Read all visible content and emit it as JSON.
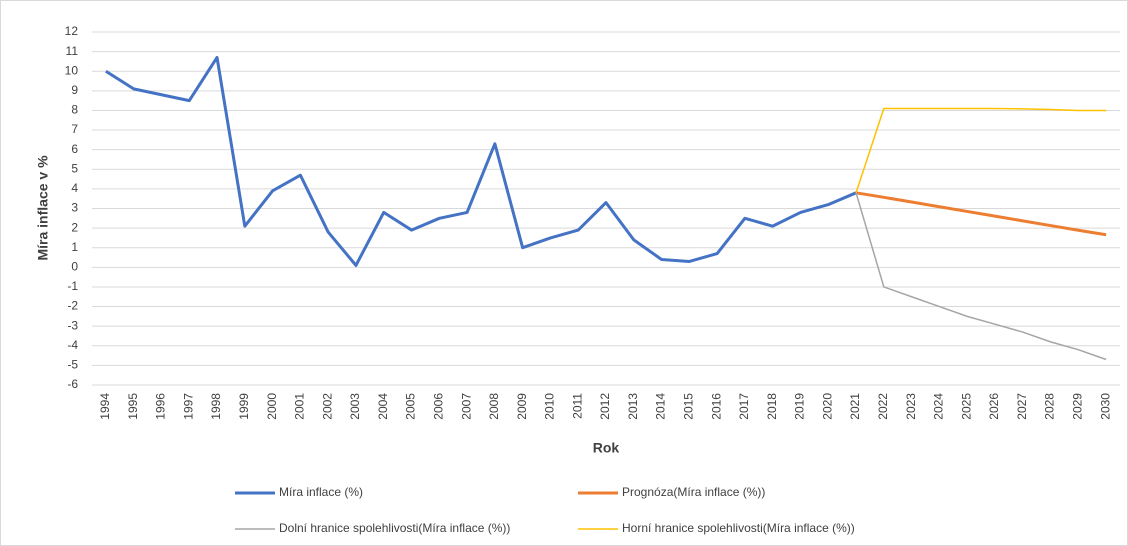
{
  "chart_data": {
    "type": "line",
    "x_label": "Rok",
    "y_label": "Míra inflace v %",
    "x": [
      1994,
      1995,
      1996,
      1997,
      1998,
      1999,
      2000,
      2001,
      2002,
      2003,
      2004,
      2005,
      2006,
      2007,
      2008,
      2009,
      2010,
      2011,
      2012,
      2013,
      2014,
      2015,
      2016,
      2017,
      2018,
      2019,
      2020,
      2021,
      2022,
      2023,
      2024,
      2025,
      2026,
      2027,
      2028,
      2029,
      2030
    ],
    "ylim": [
      -6,
      12
    ],
    "yticks": [
      -6,
      -5,
      -4,
      -3,
      -2,
      -1,
      0,
      1,
      2,
      3,
      4,
      5,
      6,
      7,
      8,
      9,
      10,
      11,
      12
    ],
    "grid": true,
    "series": [
      {
        "name": "Míra inflace (%)",
        "color": "#4472c4",
        "width": 3,
        "values": [
          10.0,
          9.1,
          8.8,
          8.5,
          10.7,
          2.1,
          3.9,
          4.7,
          1.8,
          0.1,
          2.8,
          1.9,
          2.5,
          2.8,
          6.3,
          1.0,
          1.5,
          1.9,
          3.3,
          1.4,
          0.4,
          0.3,
          0.7,
          2.5,
          2.1,
          2.8,
          3.2,
          3.8,
          null,
          null,
          null,
          null,
          null,
          null,
          null,
          null,
          null
        ]
      },
      {
        "name": "Prognóza(Míra inflace (%))",
        "color": "#ed7d31",
        "width": 3,
        "values": [
          null,
          null,
          null,
          null,
          null,
          null,
          null,
          null,
          null,
          null,
          null,
          null,
          null,
          null,
          null,
          null,
          null,
          null,
          null,
          null,
          null,
          null,
          null,
          null,
          null,
          null,
          null,
          3.8,
          3.57,
          3.33,
          3.09,
          2.85,
          2.61,
          2.37,
          2.13,
          1.89,
          1.66
        ]
      },
      {
        "name": "Dolní hranice spolehlivosti(Míra inflace (%))",
        "color": "#a5a5a5",
        "width": 1.5,
        "values": [
          null,
          null,
          null,
          null,
          null,
          null,
          null,
          null,
          null,
          null,
          null,
          null,
          null,
          null,
          null,
          null,
          null,
          null,
          null,
          null,
          null,
          null,
          null,
          null,
          null,
          null,
          null,
          3.8,
          -1.0,
          -1.5,
          -2.0,
          -2.5,
          -2.9,
          -3.3,
          -3.8,
          -4.2,
          -4.7
        ]
      },
      {
        "name": "Horní hranice spolehlivosti(Míra inflace (%))",
        "color": "#ffc000",
        "width": 1.5,
        "values": [
          null,
          null,
          null,
          null,
          null,
          null,
          null,
          null,
          null,
          null,
          null,
          null,
          null,
          null,
          null,
          null,
          null,
          null,
          null,
          null,
          null,
          null,
          null,
          null,
          null,
          null,
          null,
          3.8,
          8.1,
          8.1,
          8.1,
          8.1,
          8.1,
          8.08,
          8.05,
          8.0,
          8.0
        ]
      }
    ]
  }
}
